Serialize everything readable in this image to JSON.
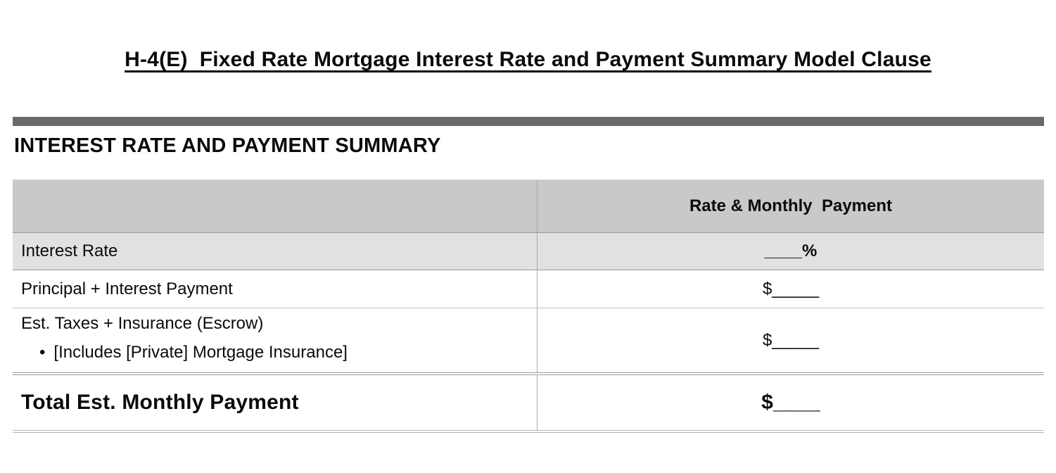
{
  "page": {
    "title": "H-4(E)  Fixed Rate Mortgage Interest Rate and Payment Summary Model Clause",
    "section_heading": "INTEREST RATE AND PAYMENT SUMMARY"
  },
  "table": {
    "header": {
      "left_label": "",
      "right_label": "Rate & Monthly  Payment"
    },
    "rows": [
      {
        "label": "Interest Rate",
        "value": "____%"
      },
      {
        "label": "Principal + Interest Payment",
        "value": "$_____"
      },
      {
        "label": "Est. Taxes + Insurance (Escrow)",
        "bullet": "•",
        "sub_bullet": "[Includes [Private] Mortgage Insurance]",
        "value": "$_____"
      },
      {
        "label": "Total Est. Monthly Payment",
        "value": "$____"
      }
    ]
  },
  "colors": {
    "bar": "#6a6a6a",
    "header_bg": "#c9c9c9",
    "row_alt_bg": "#e1e1e1"
  }
}
